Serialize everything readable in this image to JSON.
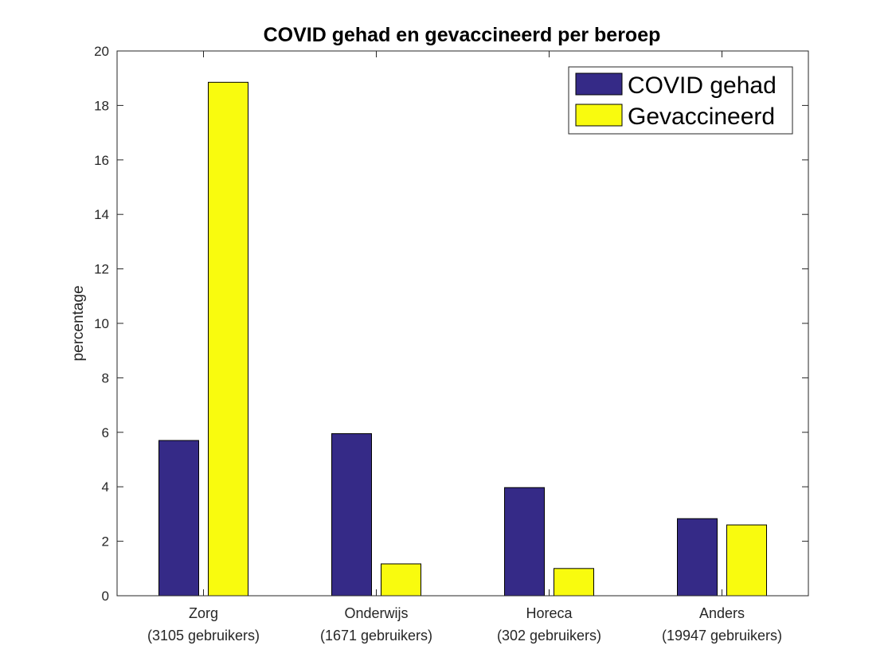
{
  "chart_data": {
    "type": "bar",
    "title": "COVID gehad en gevaccineerd per beroep",
    "xlabel": "",
    "ylabel": "percentage",
    "ylim": [
      0,
      20
    ],
    "yticks": [
      0,
      2,
      4,
      6,
      8,
      10,
      12,
      14,
      16,
      18,
      20
    ],
    "categories": [
      "Zorg",
      "Onderwijs",
      "Horeca",
      "Anders"
    ],
    "category_sublabels": [
      "(3105 gebruikers)",
      "(1671 gebruikers)",
      "(302 gebruikers)",
      "(19947 gebruikers)"
    ],
    "series": [
      {
        "name": "COVID gehad",
        "color": "#352a87",
        "values": [
          5.7,
          5.95,
          3.97,
          2.83
        ]
      },
      {
        "name": "Gevaccineerd",
        "color": "#f9fb0e",
        "values": [
          18.85,
          1.17,
          1.0,
          2.6
        ]
      }
    ],
    "legend_position": "top-right",
    "grid": false
  }
}
